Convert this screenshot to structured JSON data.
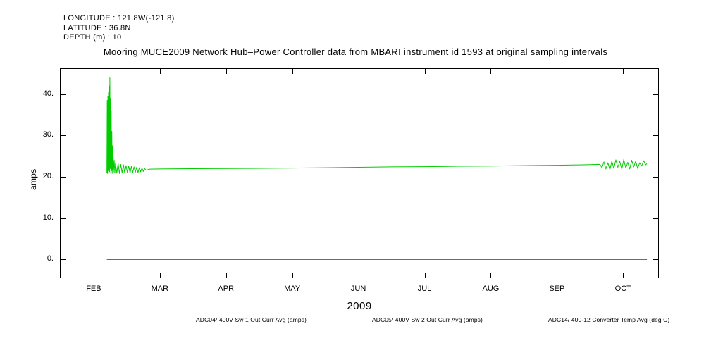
{
  "header": {
    "longitude": "LONGITUDE : 121.8W(-121.8)",
    "latitude": "LATITUDE : 36.8N",
    "depth": "DEPTH (m) : 10"
  },
  "title": "Mooring MUCE2009 Network Hub–Power Controller data from MBARI instrument id 1593 at original sampling intervals",
  "chart_data": {
    "type": "line",
    "title": "Mooring MUCE2009 Network Hub–Power Controller data from MBARI instrument id 1593 at original sampling intervals",
    "xlabel": "2009",
    "ylabel": "amps",
    "xlim": [
      1.49,
      10.54
    ],
    "ylim": [
      -4.6,
      46.3
    ],
    "grid": false,
    "legend_position": "bottom",
    "x_ticks": [
      2,
      3,
      4,
      5,
      6,
      7,
      8,
      9,
      10
    ],
    "x_tick_labels": [
      "FEB",
      "MAR",
      "APR",
      "MAY",
      "JUN",
      "JUL",
      "AUG",
      "SEP",
      "OCT"
    ],
    "y_ticks": [
      0,
      10,
      20,
      30,
      40
    ],
    "y_tick_labels": [
      "0.",
      "10.",
      "20.",
      "30.",
      "40."
    ],
    "series": [
      {
        "name": "ADC04/ 400V Sw 1 Out Curr Avg (amps)",
        "color": "#000000",
        "points": [
          [
            2.2,
            0
          ],
          [
            10.36,
            0
          ]
        ]
      },
      {
        "name": "ADC05/ 400V Sw 2 Out Curr Avg (amps)",
        "color": "#bb0000",
        "points": [
          [
            2.2,
            0
          ],
          [
            10.36,
            0
          ]
        ]
      },
      {
        "name": "ADC14/ 400-12 Converter Temp Avg (deg C)",
        "color": "#00cc00",
        "points": [
          [
            2.2,
            21
          ],
          [
            2.205,
            38.5
          ],
          [
            2.21,
            20.8
          ],
          [
            2.215,
            39.5
          ],
          [
            2.22,
            21.5
          ],
          [
            2.225,
            40.5
          ],
          [
            2.23,
            20.6
          ],
          [
            2.235,
            42
          ],
          [
            2.24,
            21.2
          ],
          [
            2.245,
            44
          ],
          [
            2.25,
            22
          ],
          [
            2.255,
            39
          ],
          [
            2.26,
            20.7
          ],
          [
            2.265,
            36
          ],
          [
            2.27,
            21.5
          ],
          [
            2.275,
            31
          ],
          [
            2.28,
            20.8
          ],
          [
            2.285,
            27.5
          ],
          [
            2.29,
            21.8
          ],
          [
            2.295,
            25
          ],
          [
            2.3,
            21.2
          ],
          [
            2.31,
            24
          ],
          [
            2.32,
            20.9
          ],
          [
            2.33,
            23.2
          ],
          [
            2.35,
            20.9
          ],
          [
            2.37,
            23.3
          ],
          [
            2.39,
            20.8
          ],
          [
            2.41,
            23.0
          ],
          [
            2.43,
            21.0
          ],
          [
            2.45,
            22.9
          ],
          [
            2.47,
            20.9
          ],
          [
            2.49,
            22.7
          ],
          [
            2.51,
            21.0
          ],
          [
            2.53,
            22.6
          ],
          [
            2.55,
            20.9
          ],
          [
            2.57,
            22.5
          ],
          [
            2.59,
            21.0
          ],
          [
            2.61,
            22.4
          ],
          [
            2.63,
            21.1
          ],
          [
            2.65,
            22.3
          ],
          [
            2.67,
            21.0
          ],
          [
            2.69,
            22.2
          ],
          [
            2.71,
            21.2
          ],
          [
            2.73,
            22.1
          ],
          [
            2.75,
            21.3
          ],
          [
            2.77,
            22.0
          ],
          [
            2.79,
            21.6
          ],
          [
            2.85,
            21.85
          ],
          [
            3.0,
            21.9
          ],
          [
            3.5,
            21.95
          ],
          [
            4.0,
            22.0
          ],
          [
            4.5,
            22.05
          ],
          [
            5.0,
            22.1
          ],
          [
            5.5,
            22.2
          ],
          [
            6.0,
            22.3
          ],
          [
            6.5,
            22.4
          ],
          [
            7.0,
            22.45
          ],
          [
            7.5,
            22.55
          ],
          [
            8.0,
            22.6
          ],
          [
            8.5,
            22.7
          ],
          [
            9.0,
            22.8
          ],
          [
            9.4,
            22.9
          ],
          [
            9.65,
            23.0
          ],
          [
            9.68,
            22.2
          ],
          [
            9.71,
            23.6
          ],
          [
            9.74,
            21.9
          ],
          [
            9.77,
            23.4
          ],
          [
            9.8,
            21.7
          ],
          [
            9.83,
            23.8
          ],
          [
            9.86,
            22.0
          ],
          [
            9.89,
            24.1
          ],
          [
            9.92,
            22.3
          ],
          [
            9.95,
            23.7
          ],
          [
            9.98,
            21.8
          ],
          [
            10.01,
            24.2
          ],
          [
            10.04,
            22.1
          ],
          [
            10.07,
            23.5
          ],
          [
            10.1,
            21.9
          ],
          [
            10.13,
            24.0
          ],
          [
            10.16,
            22.4
          ],
          [
            10.19,
            23.8
          ],
          [
            10.22,
            22.0
          ],
          [
            10.25,
            23.4
          ],
          [
            10.28,
            22.6
          ],
          [
            10.31,
            23.9
          ],
          [
            10.34,
            22.9
          ],
          [
            10.36,
            23.2
          ]
        ]
      }
    ]
  }
}
